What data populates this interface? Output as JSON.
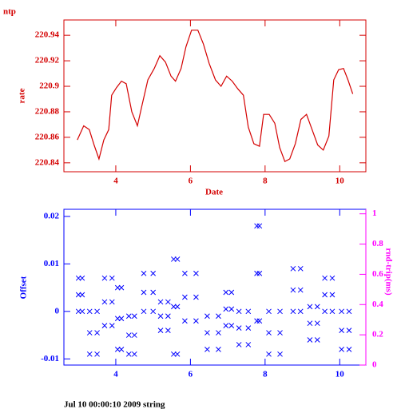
{
  "chart_data": [
    {
      "type": "line",
      "title": "ntp",
      "ylabel": "rate",
      "xlabel": "Date",
      "color": "#d40000",
      "axis_color": "#d40000",
      "xlim": [
        2.61,
        10.7
      ],
      "xticks": [
        4,
        6,
        8,
        10
      ],
      "ylim": [
        220.833,
        220.952
      ],
      "yticks": [
        220.84,
        220.86,
        220.88,
        220.9,
        220.92,
        220.94
      ],
      "x": [
        2.97,
        3.14,
        3.29,
        3.42,
        3.55,
        3.68,
        3.81,
        3.89,
        4.02,
        4.15,
        4.28,
        4.43,
        4.58,
        4.71,
        4.86,
        5.03,
        5.18,
        5.33,
        5.48,
        5.6,
        5.75,
        5.88,
        6.03,
        6.2,
        6.35,
        6.5,
        6.67,
        6.82,
        6.97,
        7.12,
        7.27,
        7.42,
        7.55,
        7.7,
        7.85,
        7.96,
        8.11,
        8.26,
        8.39,
        8.53,
        8.66,
        8.81,
        8.96,
        9.11,
        9.26,
        9.41,
        9.56,
        9.71,
        9.84,
        9.97,
        10.1,
        10.22,
        10.35
      ],
      "values": [
        220.858,
        220.869,
        220.866,
        220.854,
        220.843,
        220.858,
        220.866,
        220.893,
        220.899,
        220.904,
        220.902,
        220.88,
        220.869,
        220.886,
        220.905,
        220.914,
        220.924,
        220.919,
        220.908,
        220.904,
        220.914,
        220.931,
        220.944,
        220.944,
        220.933,
        220.918,
        220.905,
        220.9,
        220.908,
        220.904,
        220.898,
        220.893,
        220.868,
        220.855,
        220.853,
        220.878,
        220.878,
        220.871,
        220.852,
        220.841,
        220.843,
        220.855,
        220.874,
        220.878,
        220.866,
        220.854,
        220.85,
        220.861,
        220.905,
        220.913,
        220.914,
        220.905,
        220.894
      ]
    },
    {
      "type": "scatter",
      "ylabel": "Offset",
      "y2label": "rnd-trip(ms)",
      "color": "#0000ff",
      "axis_color": "#0000ff",
      "y2_color": "#ff00ff",
      "xlim": [
        2.61,
        10.7
      ],
      "xticks": [
        4,
        6,
        8,
        10
      ],
      "ylim": [
        -0.0113,
        0.0215
      ],
      "yticks": [
        -0.01,
        0,
        0.01,
        0.02
      ],
      "y2lim": [
        0,
        1.03
      ],
      "y2ticks": [
        0,
        0.2,
        0.4,
        0.6,
        0.8,
        1
      ],
      "x": [
        3.0,
        3.0,
        3.0,
        3.1,
        3.1,
        3.1,
        3.3,
        3.3,
        3.3,
        3.5,
        3.5,
        3.5,
        3.7,
        3.7,
        3.7,
        3.9,
        3.9,
        3.9,
        4.05,
        4.05,
        4.05,
        4.15,
        4.15,
        4.15,
        4.35,
        4.35,
        4.35,
        4.5,
        4.5,
        4.5,
        4.75,
        4.75,
        4.75,
        5.0,
        5.0,
        5.0,
        5.2,
        5.2,
        5.2,
        5.4,
        5.4,
        5.4,
        5.55,
        5.55,
        5.55,
        5.65,
        5.65,
        5.65,
        5.85,
        5.85,
        5.85,
        6.15,
        6.15,
        6.15,
        6.45,
        6.45,
        6.45,
        6.75,
        6.75,
        6.75,
        6.95,
        6.95,
        6.95,
        7.1,
        7.1,
        7.1,
        7.3,
        7.3,
        7.3,
        7.55,
        7.55,
        7.55,
        7.78,
        7.78,
        7.78,
        7.85,
        7.85,
        7.85,
        8.1,
        8.1,
        8.1,
        8.4,
        8.4,
        8.4,
        8.75,
        8.75,
        8.75,
        8.95,
        8.95,
        8.95,
        9.2,
        9.2,
        9.2,
        9.4,
        9.4,
        9.4,
        9.6,
        9.6,
        9.6,
        9.8,
        9.8,
        9.8,
        10.05,
        10.05,
        10.05,
        10.25,
        10.25,
        10.25
      ],
      "values": [
        0.0,
        0.0035,
        0.007,
        0.0,
        0.0035,
        0.007,
        -0.009,
        -0.0045,
        0.0,
        -0.009,
        -0.0045,
        0.0,
        -0.003,
        0.002,
        0.007,
        -0.003,
        0.002,
        0.007,
        -0.008,
        -0.0015,
        0.005,
        -0.008,
        -0.0015,
        0.005,
        -0.009,
        -0.005,
        -0.001,
        -0.009,
        -0.005,
        -0.001,
        0.0,
        0.004,
        0.008,
        0.0,
        0.004,
        0.008,
        -0.004,
        -0.001,
        0.002,
        -0.004,
        -0.001,
        0.002,
        -0.009,
        0.001,
        0.011,
        -0.009,
        0.001,
        0.011,
        -0.002,
        0.003,
        0.008,
        -0.002,
        0.003,
        0.008,
        -0.008,
        -0.0045,
        -0.001,
        -0.008,
        -0.0045,
        -0.001,
        -0.003,
        0.0005,
        0.004,
        -0.003,
        0.0005,
        0.004,
        -0.007,
        -0.0035,
        0.0,
        -0.007,
        -0.0035,
        0.0,
        -0.002,
        0.008,
        0.018,
        -0.002,
        0.008,
        0.018,
        -0.009,
        -0.0045,
        0.0,
        -0.009,
        -0.0045,
        0.0,
        0.0,
        0.0045,
        0.009,
        0.0,
        0.0045,
        0.009,
        -0.006,
        -0.0025,
        0.001,
        -0.006,
        -0.0025,
        0.001,
        0.0,
        0.0035,
        0.007,
        0.0,
        0.0035,
        0.007,
        -0.008,
        -0.004,
        0.0,
        -0.008,
        -0.004,
        0.0
      ]
    }
  ],
  "footer": "Jul 10 00:00:10 2009 string"
}
